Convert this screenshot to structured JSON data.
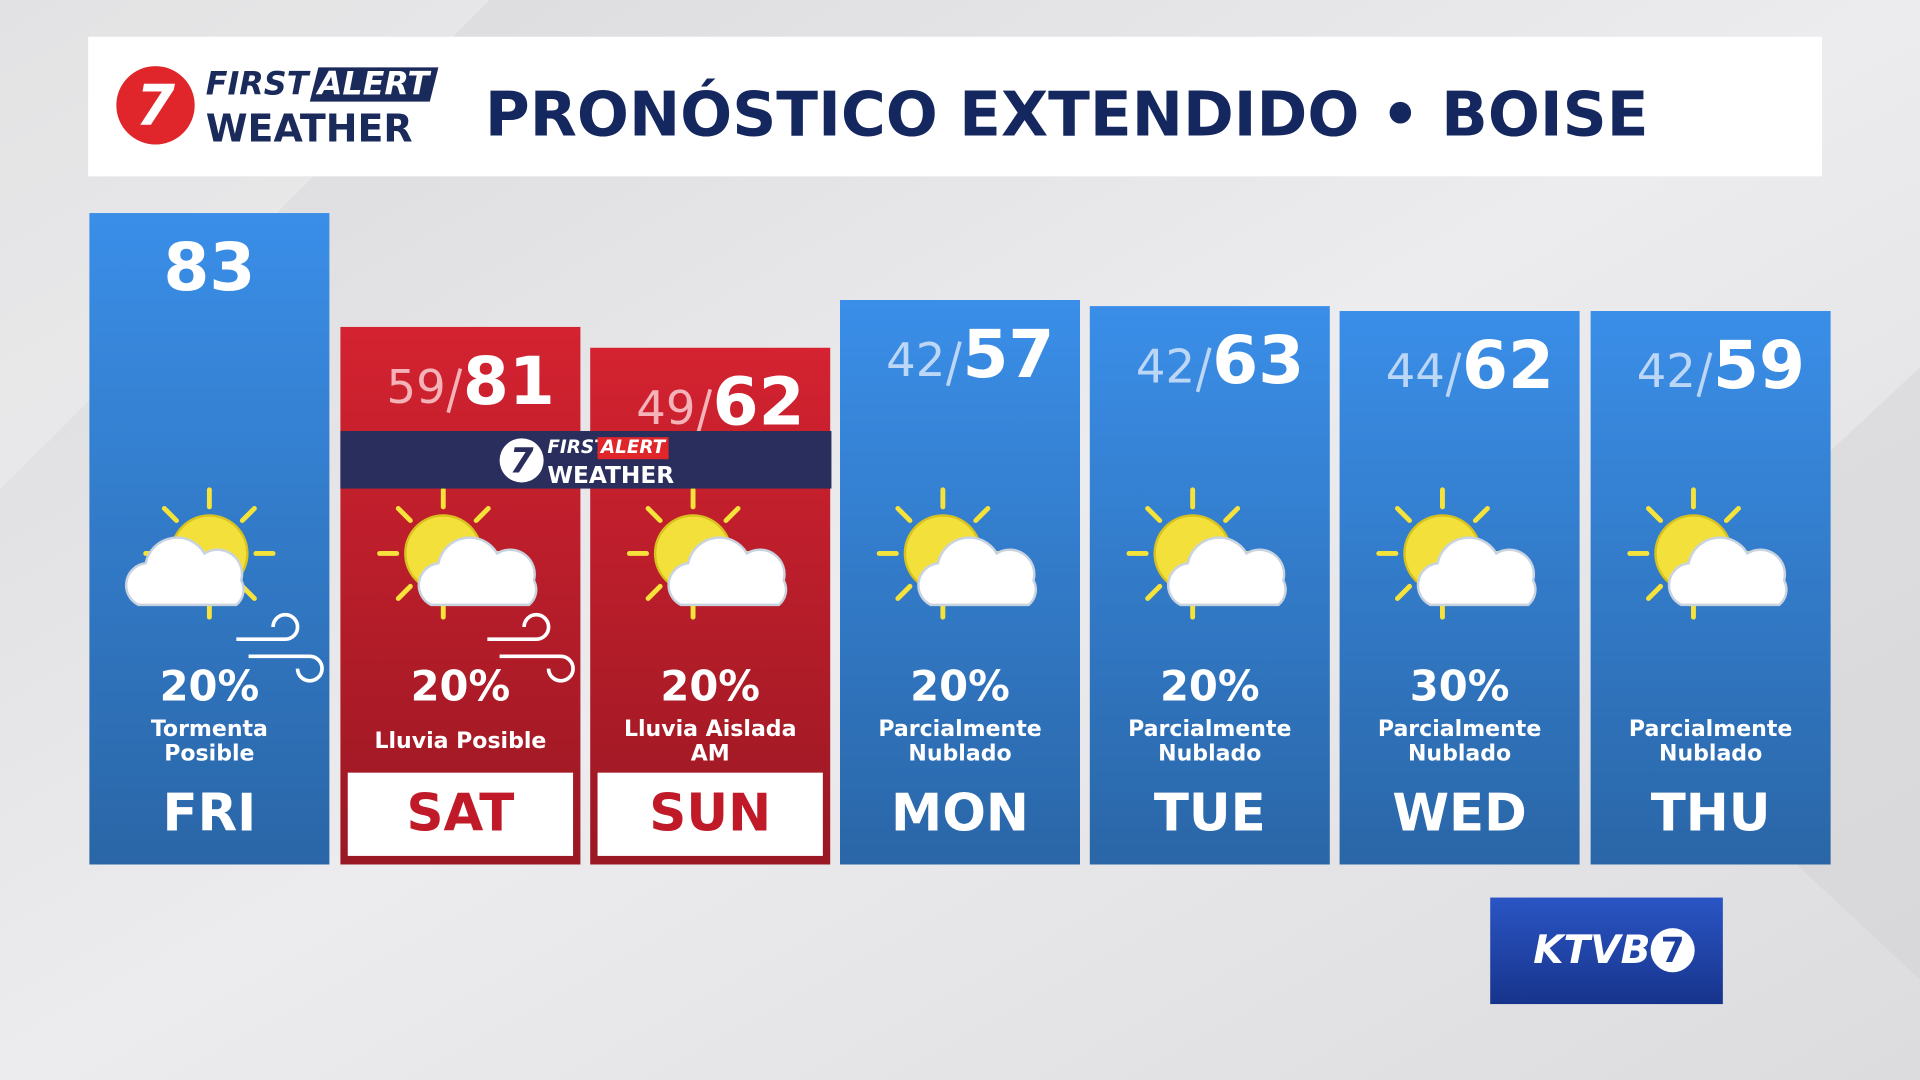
{
  "header": {
    "logo": {
      "number": "7",
      "first": "FIRST",
      "alert": "ALERT",
      "weather": "WEATHER"
    },
    "title": "PRONÓSTICO EXTENDIDO • BOISE"
  },
  "days": [
    {
      "day": "FRI",
      "high": 83,
      "precip": "20%",
      "condition": [
        "Tormenta",
        "Posible"
      ],
      "color": "#3a8ee8"
    },
    {
      "day": "SAT",
      "low": 59,
      "high": 81,
      "precip": "20%",
      "condition": [
        "Lluvia Posible"
      ],
      "color": "#d42230"
    },
    {
      "day": "SUN",
      "low": 49,
      "high": 62,
      "precip": "20%",
      "condition": [
        "Lluvia Aislada",
        "AM"
      ],
      "color": "#d42230"
    },
    {
      "day": "MON",
      "low": 42,
      "high": 57,
      "precip": "20%",
      "condition": [
        "Parcialmente",
        "Nublado"
      ],
      "color": "#3a8ee8"
    },
    {
      "day": "TUE",
      "low": 42,
      "high": 63,
      "precip": "20%",
      "condition": [
        "Parcialmente",
        "Nublado"
      ],
      "color": "#3a8ee8"
    },
    {
      "day": "WED",
      "low": 44,
      "high": 62,
      "precip": "30%",
      "condition": [
        "Parcialmente",
        "Nublado"
      ],
      "color": "#3a8ee8"
    },
    {
      "day": "THU",
      "low": 42,
      "high": 59,
      "condition": [
        "Parcialmente",
        "Nublado"
      ],
      "color": "#3a8ee8"
    }
  ],
  "station": {
    "name": "KTVB",
    "number": "7"
  }
}
